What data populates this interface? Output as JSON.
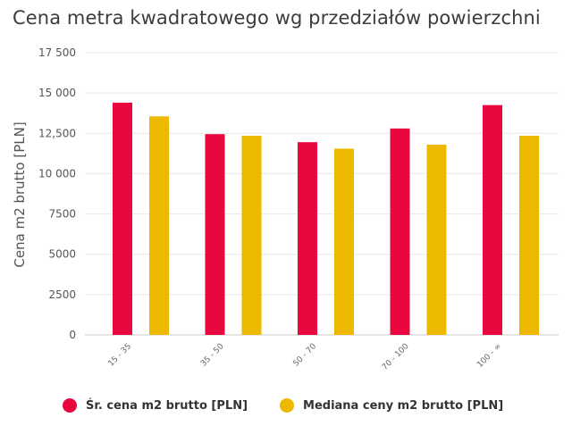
{
  "chart_data": {
    "type": "bar",
    "title": "Cena metra kwadratowego wg przedziałów powierzchni",
    "ylabel": "Cena m2 brutto [PLN]",
    "xlabel": "",
    "categories": [
      "15 - 35",
      "35 - 50",
      "50 - 70",
      "70 - 100",
      "100 - ∞"
    ],
    "series": [
      {
        "name": "Śr. cena m2 brutto [PLN]",
        "color": "#e8073f",
        "values": [
          14400,
          12450,
          11950,
          12800,
          14250
        ]
      },
      {
        "name": "Mediana ceny m2 brutto [PLN]",
        "color": "#ecb800",
        "values": [
          13550,
          12350,
          11550,
          11800,
          12350
        ]
      }
    ],
    "ylim": [
      0,
      17500
    ],
    "yticks": [
      0,
      2500,
      5000,
      7500,
      10000,
      12500,
      15000,
      17500
    ],
    "ytick_labels": [
      "0",
      "2500",
      "5000",
      "7500",
      "10 000",
      "12,500",
      "15 000",
      "17 500"
    ],
    "grid": true,
    "legend_position": "bottom"
  }
}
